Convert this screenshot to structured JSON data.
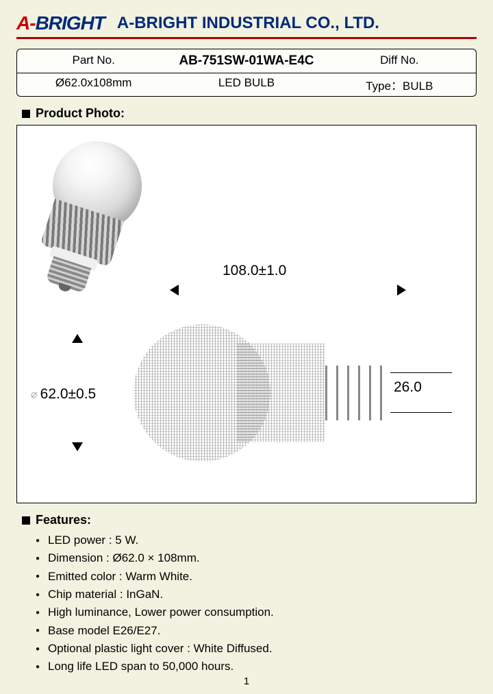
{
  "company_name": "A-BRIGHT INDUSTRIAL CO., LTD.",
  "logo": {
    "a": "A",
    "dash": "-",
    "rest": "BRIGHT"
  },
  "colors": {
    "page_bg": "#f2f2e0",
    "logo_red": "#c40000",
    "logo_blue": "#002a7a",
    "rule_red": "#b00000",
    "box_bg": "#fdfdfa"
  },
  "header": {
    "row1": {
      "part_no_label": "Part No.",
      "part_no": "AB-751SW-01WA-E4C",
      "diff_no_label": "Diff No."
    },
    "row2": {
      "dimension": "Ø62.0x108mm",
      "product": "LED BULB",
      "type_label": "Type：",
      "type_value": "BULB"
    }
  },
  "sections": {
    "photo_title": "Product Photo:",
    "features_title": "Features:"
  },
  "dimensions": {
    "width": "108.0±1.0",
    "height": "62.0±0.5",
    "screw": "26.0"
  },
  "features": [
    "LED power : 5 W.",
    "Dimension : Ø62.0 × 108mm.",
    "Emitted color : Warm White.",
    "Chip material : InGaN.",
    "High luminance, Lower power consumption.",
    "Base model E26/E27.",
    "Optional plastic light cover : White Diffused.",
    "Long life LED span to 50,000 hours."
  ],
  "page_number": "1"
}
